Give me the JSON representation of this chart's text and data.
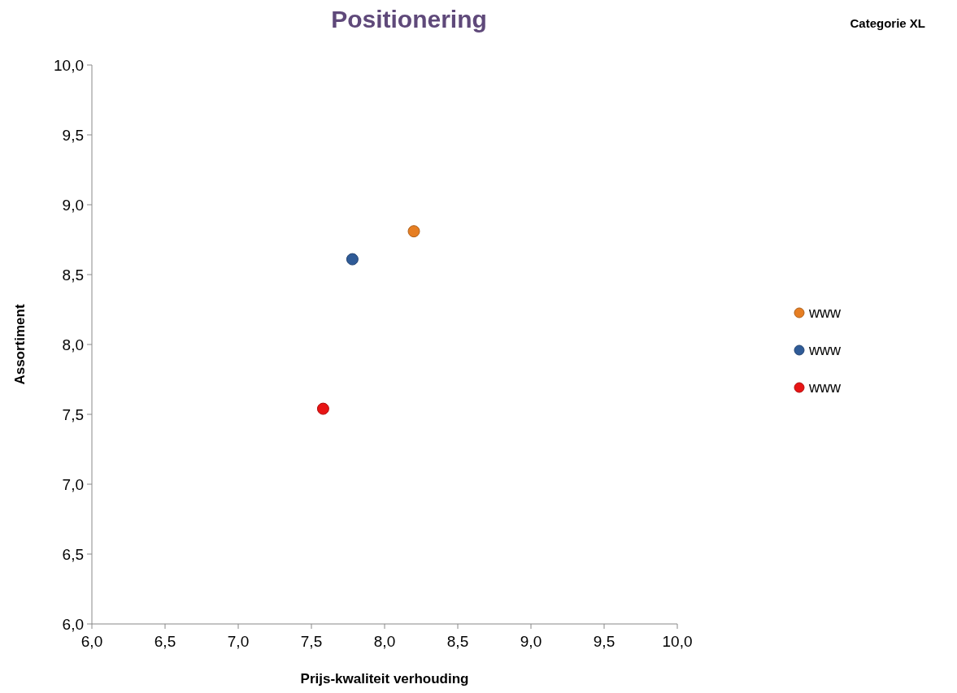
{
  "chart_data": {
    "type": "scatter",
    "title": "Positionering",
    "xlabel": "Prijs-kwaliteit verhouding",
    "ylabel": "Assortiment",
    "annotations": [
      "Categorie XL"
    ],
    "series": [
      {
        "name": "www",
        "color": "#e67e22",
        "x": [
          8.2
        ],
        "values": [
          8.81
        ]
      },
      {
        "name": "www",
        "color": "#2f5b97",
        "x": [
          7.78
        ],
        "values": [
          8.61
        ]
      },
      {
        "name": "www",
        "color": "#e81414",
        "x": [
          7.58
        ],
        "values": [
          7.54
        ]
      }
    ],
    "xlim": [
      6,
      10
    ],
    "ylim": [
      6,
      10
    ],
    "xticks": [
      {
        "value": 6,
        "label": "6,0"
      },
      {
        "value": 6.5,
        "label": "6,5"
      },
      {
        "value": 7,
        "label": "7,0"
      },
      {
        "value": 7.5,
        "label": "7,5"
      },
      {
        "value": 8,
        "label": "8,0"
      },
      {
        "value": 8.5,
        "label": "8,5"
      },
      {
        "value": 9,
        "label": "9,0"
      },
      {
        "value": 9.5,
        "label": "9,5"
      },
      {
        "value": 10,
        "label": "10,0"
      }
    ],
    "yticks": [
      {
        "value": 6,
        "label": "6,0"
      },
      {
        "value": 6.5,
        "label": "6,5"
      },
      {
        "value": 7,
        "label": "7,0"
      },
      {
        "value": 7.5,
        "label": "7,5"
      },
      {
        "value": 8,
        "label": "8,0"
      },
      {
        "value": 8.5,
        "label": "8,5"
      },
      {
        "value": 9,
        "label": "9,0"
      },
      {
        "value": 9.5,
        "label": "9,5"
      },
      {
        "value": 10,
        "label": "10,0"
      }
    ],
    "grid": false,
    "legend": "right",
    "marker": "circle"
  }
}
